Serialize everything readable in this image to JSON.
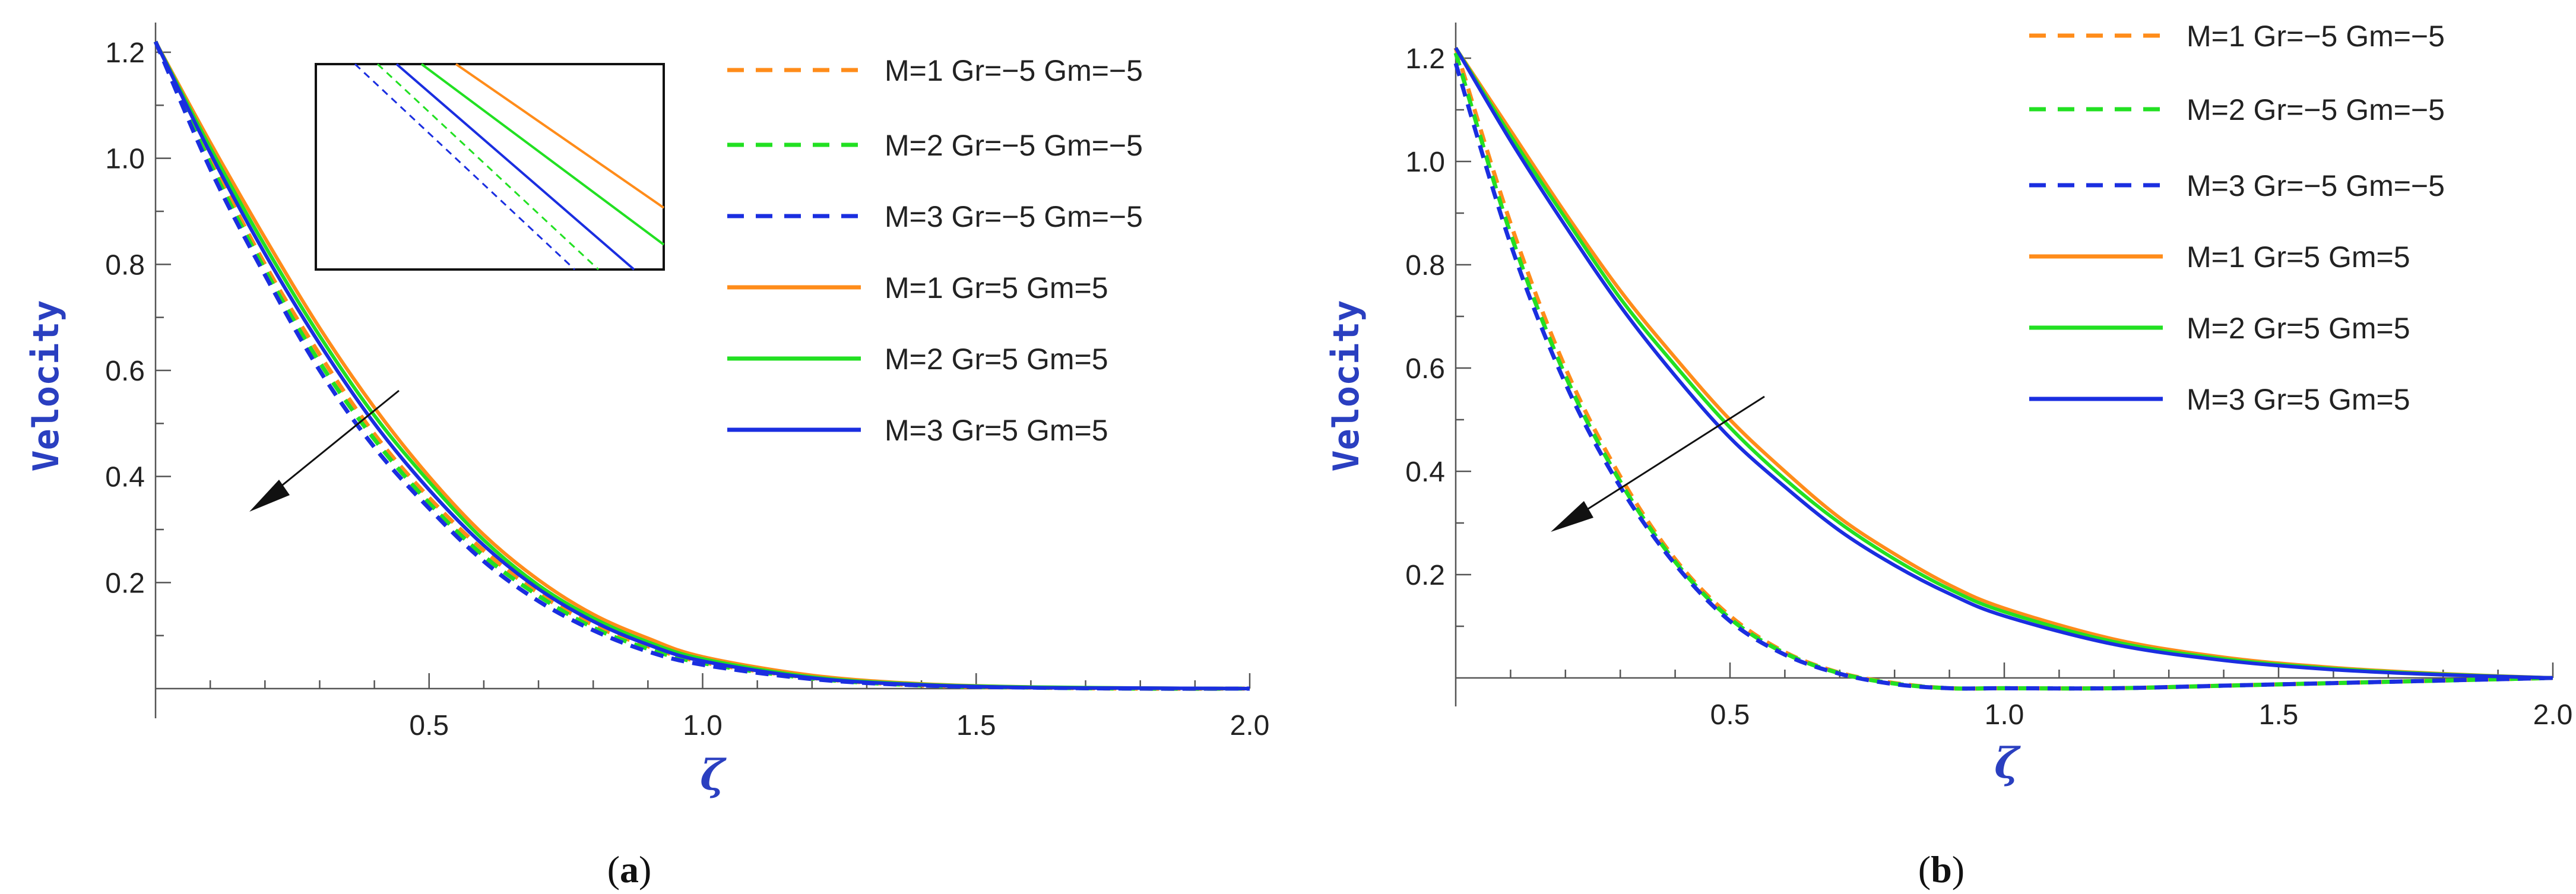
{
  "chart_data": [
    {
      "type": "line",
      "panel": "a",
      "caption": "(a)",
      "caption_letter": "a",
      "xlabel": "ζ",
      "ylabel": "Velocity",
      "xlim": [
        0,
        2.0
      ],
      "ylim": [
        0,
        1.22
      ],
      "xticks": [
        "0.5",
        "1.0",
        "1.5",
        "2.0"
      ],
      "yticks": [
        "0.2",
        "0.4",
        "0.6",
        "0.8",
        "1.0",
        "1.2"
      ],
      "x": [
        0,
        0.1,
        0.2,
        0.3,
        0.4,
        0.5,
        0.6,
        0.7,
        0.8,
        0.9,
        1.0,
        1.2,
        1.4,
        1.6,
        1.8,
        2.0
      ],
      "series": [
        {
          "name": "M=1 Gr=−5 Gm=−5",
          "color": "#ff8c1a",
          "style": "dashed",
          "values": [
            1.22,
            1.0,
            0.8,
            0.63,
            0.48,
            0.36,
            0.26,
            0.18,
            0.12,
            0.08,
            0.05,
            0.02,
            0.006,
            0.002,
            0.0,
            0.0
          ]
        },
        {
          "name": "M=2 Gr=−5 Gm=−5",
          "color": "#22e022",
          "style": "dashed",
          "values": [
            1.22,
            0.99,
            0.79,
            0.615,
            0.47,
            0.35,
            0.25,
            0.175,
            0.115,
            0.075,
            0.048,
            0.019,
            0.006,
            0.002,
            0.0,
            0.0
          ]
        },
        {
          "name": "M=3 Gr=−5 Gm=−5",
          "color": "#1a2ee0",
          "style": "dashed",
          "values": [
            1.22,
            0.98,
            0.78,
            0.6,
            0.455,
            0.34,
            0.24,
            0.165,
            0.11,
            0.07,
            0.045,
            0.018,
            0.006,
            0.002,
            0.0,
            0.0
          ]
        },
        {
          "name": "M=1 Gr=5 Gm=5",
          "color": "#ff8c1a",
          "style": "solid",
          "values": [
            1.22,
            1.03,
            0.85,
            0.68,
            0.53,
            0.4,
            0.29,
            0.205,
            0.14,
            0.095,
            0.06,
            0.025,
            0.009,
            0.003,
            0.001,
            0.0
          ]
        },
        {
          "name": "M=2 Gr=5 Gm=5",
          "color": "#22e022",
          "style": "solid",
          "values": [
            1.22,
            1.02,
            0.835,
            0.665,
            0.515,
            0.39,
            0.28,
            0.195,
            0.133,
            0.088,
            0.056,
            0.022,
            0.008,
            0.003,
            0.001,
            0.0
          ]
        },
        {
          "name": "M=3 Gr=5 Gm=5",
          "color": "#1a2ee0",
          "style": "solid",
          "values": [
            1.22,
            1.01,
            0.82,
            0.65,
            0.5,
            0.375,
            0.27,
            0.188,
            0.127,
            0.083,
            0.052,
            0.02,
            0.007,
            0.002,
            0.001,
            0.0
          ]
        }
      ],
      "annotation": "arrow indicating decreasing velocity with increasing M",
      "inset": "zoomed view of curves",
      "legend_position": "top-right"
    },
    {
      "type": "line",
      "panel": "b",
      "caption": "(b)",
      "caption_letter": "b",
      "xlabel": "ζ",
      "ylabel": "Velocity",
      "xlim": [
        0,
        2.0
      ],
      "ylim": [
        -0.03,
        1.22
      ],
      "xticks": [
        "0.5",
        "1.0",
        "1.5",
        "2.0"
      ],
      "yticks": [
        "0.2",
        "0.4",
        "0.6",
        "0.8",
        "1.0",
        "1.2"
      ],
      "x": [
        0,
        0.1,
        0.2,
        0.3,
        0.4,
        0.5,
        0.6,
        0.7,
        0.8,
        0.9,
        1.0,
        1.2,
        1.4,
        1.6,
        1.8,
        2.0
      ],
      "series": [
        {
          "name": "M=1 Gr=−5 Gm=−5",
          "color": "#ff8c1a",
          "style": "dashed",
          "values": [
            1.22,
            0.88,
            0.6,
            0.39,
            0.23,
            0.12,
            0.05,
            0.01,
            -0.01,
            -0.02,
            -0.02,
            -0.02,
            -0.015,
            -0.01,
            -0.005,
            0.0
          ]
        },
        {
          "name": "M=2 Gr=−5 Gm=−5",
          "color": "#22e022",
          "style": "dashed",
          "values": [
            1.21,
            0.86,
            0.585,
            0.38,
            0.225,
            0.115,
            0.048,
            0.009,
            -0.011,
            -0.02,
            -0.02,
            -0.02,
            -0.015,
            -0.01,
            -0.005,
            0.0
          ]
        },
        {
          "name": "M=3 Gr=−5 Gm=−5",
          "color": "#1a2ee0",
          "style": "dashed",
          "values": [
            1.19,
            0.84,
            0.57,
            0.37,
            0.22,
            0.11,
            0.045,
            0.008,
            -0.012,
            -0.02,
            -0.02,
            -0.02,
            -0.015,
            -0.01,
            -0.005,
            0.0
          ]
        },
        {
          "name": "M=1 Gr=5 Gm=5",
          "color": "#ff8c1a",
          "style": "solid",
          "values": [
            1.22,
            1.06,
            0.9,
            0.75,
            0.62,
            0.5,
            0.4,
            0.31,
            0.24,
            0.18,
            0.135,
            0.075,
            0.04,
            0.02,
            0.008,
            0.0
          ]
        },
        {
          "name": "M=2 Gr=5 Gm=5",
          "color": "#22e022",
          "style": "solid",
          "values": [
            1.22,
            1.05,
            0.89,
            0.735,
            0.605,
            0.485,
            0.385,
            0.3,
            0.23,
            0.172,
            0.128,
            0.07,
            0.037,
            0.018,
            0.007,
            0.0
          ]
        },
        {
          "name": "M=3 Gr=5 Gm=5",
          "color": "#1a2ee0",
          "style": "solid",
          "values": [
            1.22,
            1.04,
            0.875,
            0.72,
            0.585,
            0.465,
            0.37,
            0.285,
            0.218,
            0.163,
            0.12,
            0.065,
            0.034,
            0.016,
            0.006,
            0.0
          ]
        }
      ],
      "annotation": "arrow indicating decreasing velocity with increasing M",
      "legend_position": "top-right"
    }
  ]
}
